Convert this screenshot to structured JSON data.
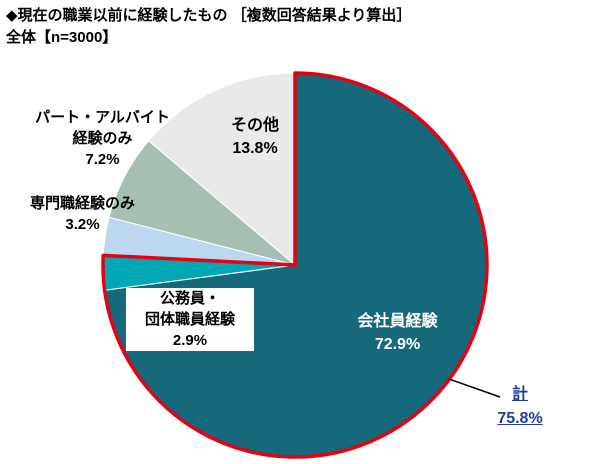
{
  "title": {
    "line1": "◆現在の職業以前に経験したもの ［複数回答結果より算出］",
    "line2": "全体【n=3000】"
  },
  "chart_data": {
    "type": "pie",
    "title": "現在の職業以前に経験したもの ［複数回答結果より算出］ 全体【n=3000】",
    "n": 3000,
    "unit": "%",
    "start_angle_deg": 0,
    "direction": "clockwise",
    "slices": [
      {
        "label": "会社員経験",
        "value": 72.9,
        "color": "#15697B",
        "highlighted": true
      },
      {
        "label": "公務員・団体職員経験",
        "value": 2.9,
        "color": "#00A7B5",
        "highlighted": true
      },
      {
        "label": "専門職経験のみ",
        "value": 3.2,
        "color": "#BDD7EE",
        "highlighted": false
      },
      {
        "label": "パート・アルバイト経験のみ",
        "value": 7.2,
        "color": "#A7BFB2",
        "highlighted": false
      },
      {
        "label": "その他",
        "value": 13.8,
        "color": "#E9E9E9",
        "highlighted": false
      }
    ],
    "highlight": {
      "label": "計",
      "value": 75.8,
      "display": "75.8%",
      "outline_color": "#E60012",
      "text_color": "#1F3D99"
    }
  },
  "labels": {
    "kaishain": {
      "line1": "会社員経験",
      "line2": "72.9%"
    },
    "koumuin": {
      "line1": "公務員・",
      "line2": "団体職員経験",
      "line3": "2.9%"
    },
    "senmon": {
      "line1": "専門職経験のみ",
      "line2": "3.2%"
    },
    "part": {
      "line1": "パート・アルバイト",
      "line2": "経験のみ",
      "line3": "7.2%"
    },
    "sonota": {
      "line1": "その他",
      "line2": "13.8%"
    },
    "kei": {
      "line1": "計",
      "line2": "75.8%"
    }
  }
}
